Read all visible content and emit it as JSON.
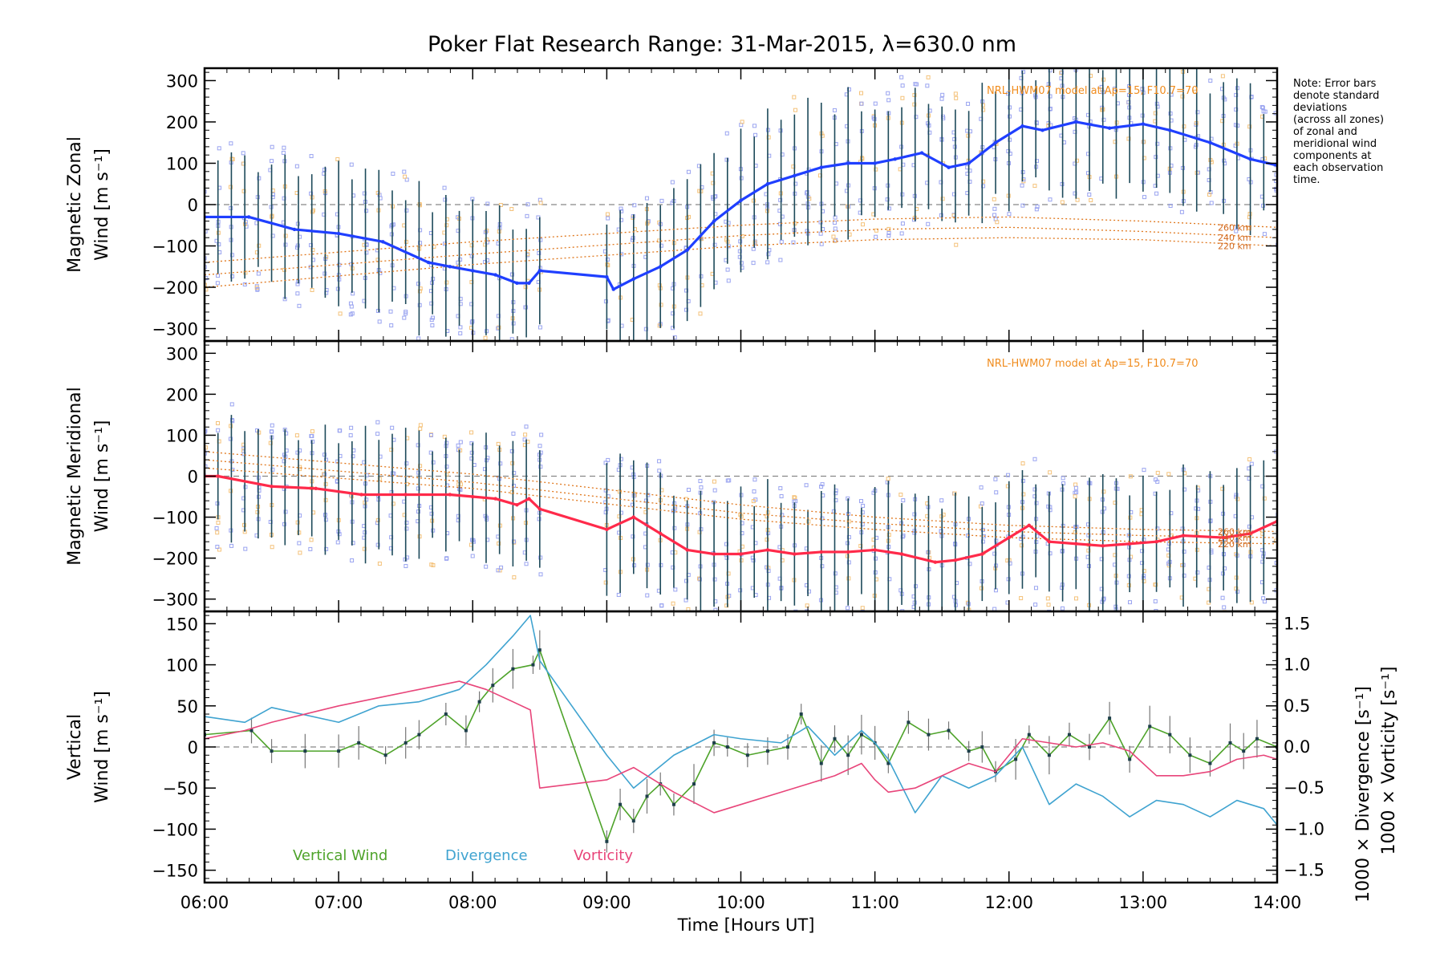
{
  "title": "Poker Flat Research Range: 31-Mar-2015, λ=630.0 nm",
  "note": [
    "Note: Error bars",
    "denote standard",
    "deviations",
    "(across all zones)",
    "of zonal and",
    "meridional wind",
    "components at",
    "each observation",
    "time."
  ],
  "xaxis": {
    "label": "Time [Hours UT]",
    "ticks": [
      "06:00",
      "07:00",
      "08:00",
      "09:00",
      "10:00",
      "11:00",
      "12:00",
      "13:00",
      "14:00"
    ],
    "range_hours": [
      6,
      14
    ]
  },
  "chart_data": [
    {
      "type": "line",
      "panel": "zonal",
      "ylabel_line1": "Magnetic Zonal",
      "ylabel_line2": "Wind [m s⁻¹]",
      "ylim": [
        -330,
        330
      ],
      "yticks": [
        300,
        200,
        100,
        0,
        -100,
        -200,
        -300
      ],
      "model_label": "NRL-HWM07 model at Ap=15, F10.7=70",
      "model_altitudes": [
        "260 km",
        "240 km",
        "220 km"
      ],
      "color": "#1f3fff",
      "series": [
        {
          "x": [
            6.0,
            6.33,
            6.67,
            7.0,
            7.33,
            7.67,
            7.83,
            8.0,
            8.17,
            8.33,
            8.42,
            8.5,
            9.0,
            9.05,
            9.2,
            9.4,
            9.6,
            9.8,
            10.0,
            10.2,
            10.4,
            10.6,
            10.8,
            11.0,
            11.15,
            11.35,
            11.55,
            11.7,
            11.9,
            12.1,
            12.25,
            12.5,
            12.75,
            13.0,
            13.2,
            13.5,
            13.8,
            14.0
          ],
          "values": [
            -30,
            -30,
            -60,
            -70,
            -90,
            -140,
            -150,
            -160,
            -170,
            -190,
            -190,
            -160,
            -175,
            -205,
            -180,
            -150,
            -110,
            -40,
            10,
            50,
            70,
            90,
            100,
            100,
            110,
            125,
            90,
            100,
            150,
            190,
            180,
            200,
            185,
            195,
            180,
            150,
            110,
            95
          ]
        }
      ],
      "error_half_width": 150,
      "model": [
        {
          "name": "260 km",
          "x": [
            6.0,
            8.0,
            10.0,
            11.0,
            12.0,
            13.0,
            14.0
          ],
          "values": [
            -140,
            -90,
            -50,
            -35,
            -30,
            -40,
            -55
          ]
        },
        {
          "name": "240 km",
          "x": [
            6.0,
            8.0,
            10.0,
            11.0,
            12.0,
            13.0,
            14.0
          ],
          "values": [
            -170,
            -120,
            -75,
            -60,
            -55,
            -65,
            -80
          ]
        },
        {
          "name": "220 km",
          "x": [
            6.0,
            8.0,
            10.0,
            11.0,
            12.0,
            13.0,
            14.0
          ],
          "values": [
            -200,
            -145,
            -100,
            -85,
            -80,
            -85,
            -100
          ]
        }
      ]
    },
    {
      "type": "line",
      "panel": "meridional",
      "ylabel_line1": "Magnetic Meridional",
      "ylabel_line2": "Wind [m s⁻¹]",
      "ylim": [
        -330,
        330
      ],
      "yticks": [
        300,
        200,
        100,
        0,
        -100,
        -200,
        -300
      ],
      "model_label": "NRL-HWM07 model at Ap=15, F10.7=70",
      "model_altitudes": [
        "260 km",
        "240 km",
        "220 km"
      ],
      "color": "#ff2a4a",
      "series": [
        {
          "x": [
            6.0,
            6.1,
            6.5,
            6.83,
            7.17,
            7.5,
            7.83,
            8.0,
            8.17,
            8.33,
            8.42,
            8.5,
            9.0,
            9.2,
            9.4,
            9.6,
            9.8,
            10.0,
            10.2,
            10.4,
            10.6,
            10.8,
            11.0,
            11.2,
            11.45,
            11.6,
            11.8,
            12.0,
            12.15,
            12.3,
            12.5,
            12.7,
            12.9,
            13.1,
            13.3,
            13.6,
            13.8,
            14.0
          ],
          "values": [
            0,
            0,
            -25,
            -30,
            -45,
            -45,
            -45,
            -50,
            -55,
            -70,
            -55,
            -80,
            -130,
            -100,
            -140,
            -180,
            -190,
            -190,
            -180,
            -190,
            -185,
            -185,
            -180,
            -190,
            -210,
            -205,
            -190,
            -150,
            -120,
            -160,
            -165,
            -170,
            -165,
            -160,
            -145,
            -150,
            -140,
            -110
          ]
        }
      ],
      "error_half_width": 140,
      "model": [
        {
          "name": "260 km",
          "x": [
            6.0,
            8.0,
            10.0,
            11.0,
            12.0,
            13.0,
            14.0
          ],
          "values": [
            60,
            5,
            -70,
            -100,
            -120,
            -130,
            -135
          ]
        },
        {
          "name": "240 km",
          "x": [
            6.0,
            8.0,
            10.0,
            11.0,
            12.0,
            13.0,
            14.0
          ],
          "values": [
            40,
            -15,
            -90,
            -115,
            -135,
            -145,
            -150
          ]
        },
        {
          "name": "220 km",
          "x": [
            6.0,
            8.0,
            10.0,
            11.0,
            12.0,
            13.0,
            14.0
          ],
          "values": [
            20,
            -30,
            -105,
            -130,
            -150,
            -160,
            -165
          ]
        }
      ]
    },
    {
      "type": "line",
      "panel": "vertical",
      "ylabel_line1": "Vertical",
      "ylabel_line2": "Wind [m s⁻¹]",
      "ylim": [
        -165,
        165
      ],
      "yticks": [
        150,
        100,
        50,
        0,
        -50,
        -100,
        -150
      ],
      "y2label_div": "1000 × Divergence [s⁻¹]",
      "y2label_vort": "1000 × Vorticity [s⁻¹]",
      "y2lim": [
        -1.65,
        1.65
      ],
      "y2ticks": [
        "1.5",
        "1.0",
        "0.5",
        "0.0",
        "−0.5",
        "−1.0",
        "−1.5"
      ],
      "y2tick_values": [
        1.5,
        1.0,
        0.5,
        0.0,
        -0.5,
        -1.0,
        -1.5
      ],
      "series": [
        {
          "name": "Vertical Wind",
          "color": "#4ea32a",
          "axis": "left",
          "x": [
            6.0,
            6.35,
            6.5,
            6.75,
            7.0,
            7.15,
            7.35,
            7.5,
            7.6,
            7.8,
            7.95,
            8.05,
            8.15,
            8.3,
            8.45,
            8.5,
            9.0,
            9.1,
            9.2,
            9.3,
            9.4,
            9.5,
            9.65,
            9.8,
            9.9,
            10.05,
            10.2,
            10.35,
            10.45,
            10.6,
            10.7,
            10.8,
            10.9,
            11.0,
            11.1,
            11.25,
            11.4,
            11.55,
            11.7,
            11.8,
            11.9,
            12.05,
            12.15,
            12.3,
            12.45,
            12.6,
            12.75,
            12.9,
            13.05,
            13.2,
            13.35,
            13.5,
            13.65,
            13.75,
            13.85,
            14.0
          ],
          "values": [
            15,
            20,
            -5,
            -5,
            -5,
            5,
            -10,
            5,
            15,
            40,
            20,
            55,
            75,
            95,
            100,
            118,
            -115,
            -70,
            -90,
            -60,
            -45,
            -70,
            -45,
            5,
            0,
            -10,
            -5,
            0,
            40,
            -20,
            10,
            -10,
            15,
            5,
            -20,
            30,
            15,
            20,
            -5,
            0,
            -30,
            -15,
            15,
            -10,
            15,
            0,
            35,
            -15,
            25,
            15,
            -10,
            -20,
            5,
            -5,
            10,
            0
          ]
        },
        {
          "name": "Divergence",
          "color": "#3fa3d0",
          "axis": "right",
          "x": [
            6.0,
            6.3,
            6.5,
            7.0,
            7.3,
            7.6,
            7.9,
            8.1,
            8.3,
            8.43,
            8.5,
            9.0,
            9.2,
            9.5,
            9.8,
            10.0,
            10.3,
            10.5,
            10.7,
            10.9,
            11.0,
            11.1,
            11.3,
            11.5,
            11.7,
            11.9,
            12.1,
            12.3,
            12.5,
            12.7,
            12.9,
            13.1,
            13.3,
            13.5,
            13.7,
            13.9,
            14.0
          ],
          "values": [
            0.37,
            0.3,
            0.48,
            0.3,
            0.5,
            0.55,
            0.7,
            1.0,
            1.35,
            1.6,
            1.05,
            -0.1,
            -0.5,
            -0.1,
            0.15,
            0.1,
            0.05,
            0.25,
            -0.1,
            0.2,
            0.05,
            -0.15,
            -0.8,
            -0.35,
            -0.5,
            -0.35,
            0.0,
            -0.7,
            -0.45,
            -0.6,
            -0.85,
            -0.65,
            -0.7,
            -0.85,
            -0.65,
            -0.75,
            -0.95
          ]
        },
        {
          "name": "Vorticity",
          "color": "#e8457a",
          "axis": "right",
          "x": [
            6.0,
            6.3,
            6.5,
            7.0,
            7.3,
            7.6,
            7.9,
            8.1,
            8.3,
            8.43,
            8.5,
            9.0,
            9.2,
            9.5,
            9.8,
            10.0,
            10.3,
            10.5,
            10.7,
            10.9,
            11.0,
            11.1,
            11.3,
            11.5,
            11.7,
            11.9,
            12.1,
            12.3,
            12.5,
            12.7,
            12.9,
            13.1,
            13.3,
            13.5,
            13.7,
            13.9,
            14.0
          ],
          "values": [
            0.1,
            0.2,
            0.3,
            0.5,
            0.6,
            0.7,
            0.8,
            0.7,
            0.55,
            0.45,
            -0.5,
            -0.4,
            -0.25,
            -0.55,
            -0.8,
            -0.7,
            -0.55,
            -0.45,
            -0.35,
            -0.2,
            -0.4,
            -0.55,
            -0.5,
            -0.35,
            -0.2,
            -0.3,
            0.1,
            0.05,
            0.0,
            0.05,
            -0.05,
            -0.35,
            -0.35,
            -0.3,
            -0.15,
            -0.1,
            -0.15
          ]
        }
      ],
      "error_half_width": 18
    }
  ],
  "legend": [
    {
      "label": "Vertical Wind",
      "color": "#4ea32a"
    },
    {
      "label": "Divergence",
      "color": "#3fa3d0"
    },
    {
      "label": "Vorticity",
      "color": "#e8457a"
    }
  ]
}
